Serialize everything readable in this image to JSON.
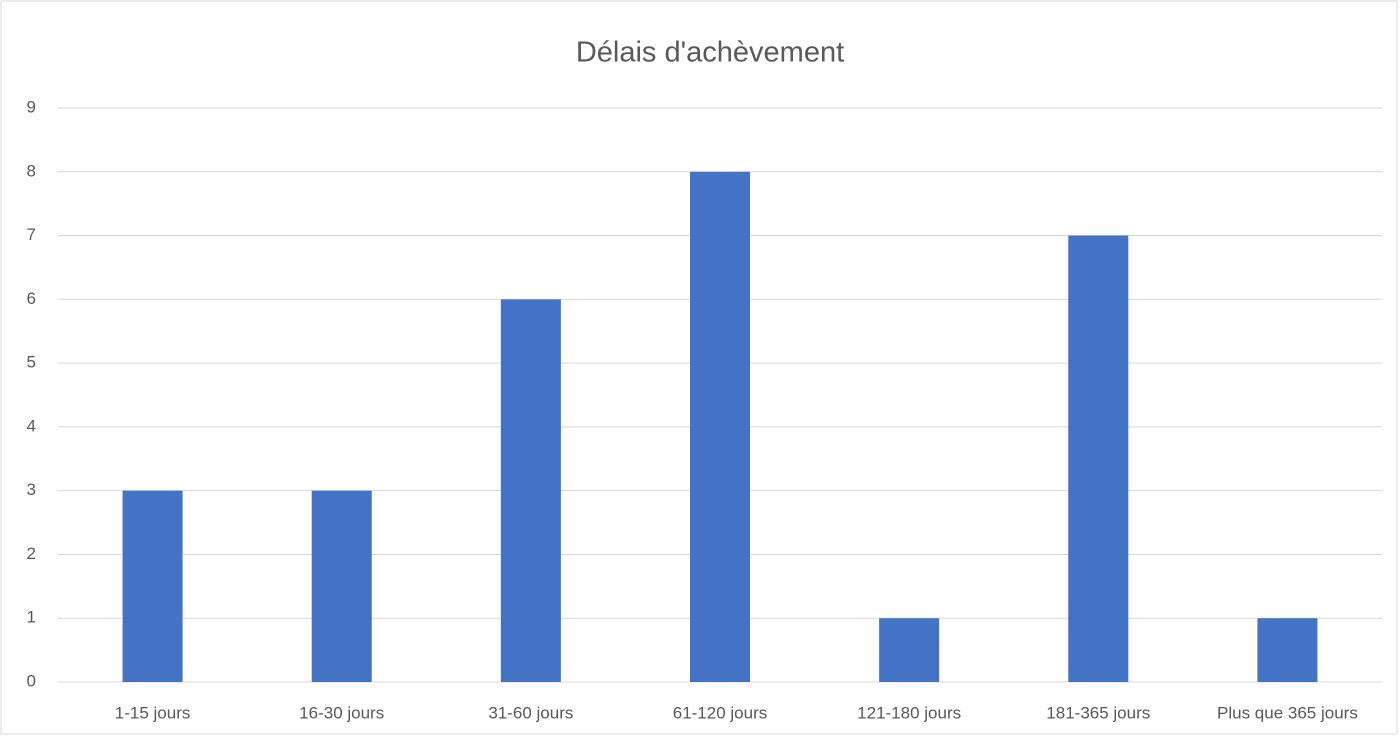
{
  "chart_data": {
    "type": "bar",
    "title": "Délais d'achèvement",
    "categories": [
      "1-15 jours",
      "16-30 jours",
      "31-60 jours",
      "61-120 jours",
      "121-180 jours",
      "181-365 jours",
      "Plus que 365 jours"
    ],
    "values": [
      3,
      3,
      6,
      8,
      1,
      7,
      1
    ],
    "color": "#4472c4",
    "ylim": [
      0,
      9
    ],
    "yticks": [
      0,
      1,
      2,
      3,
      4,
      5,
      6,
      7,
      8,
      9
    ],
    "grid": true
  }
}
